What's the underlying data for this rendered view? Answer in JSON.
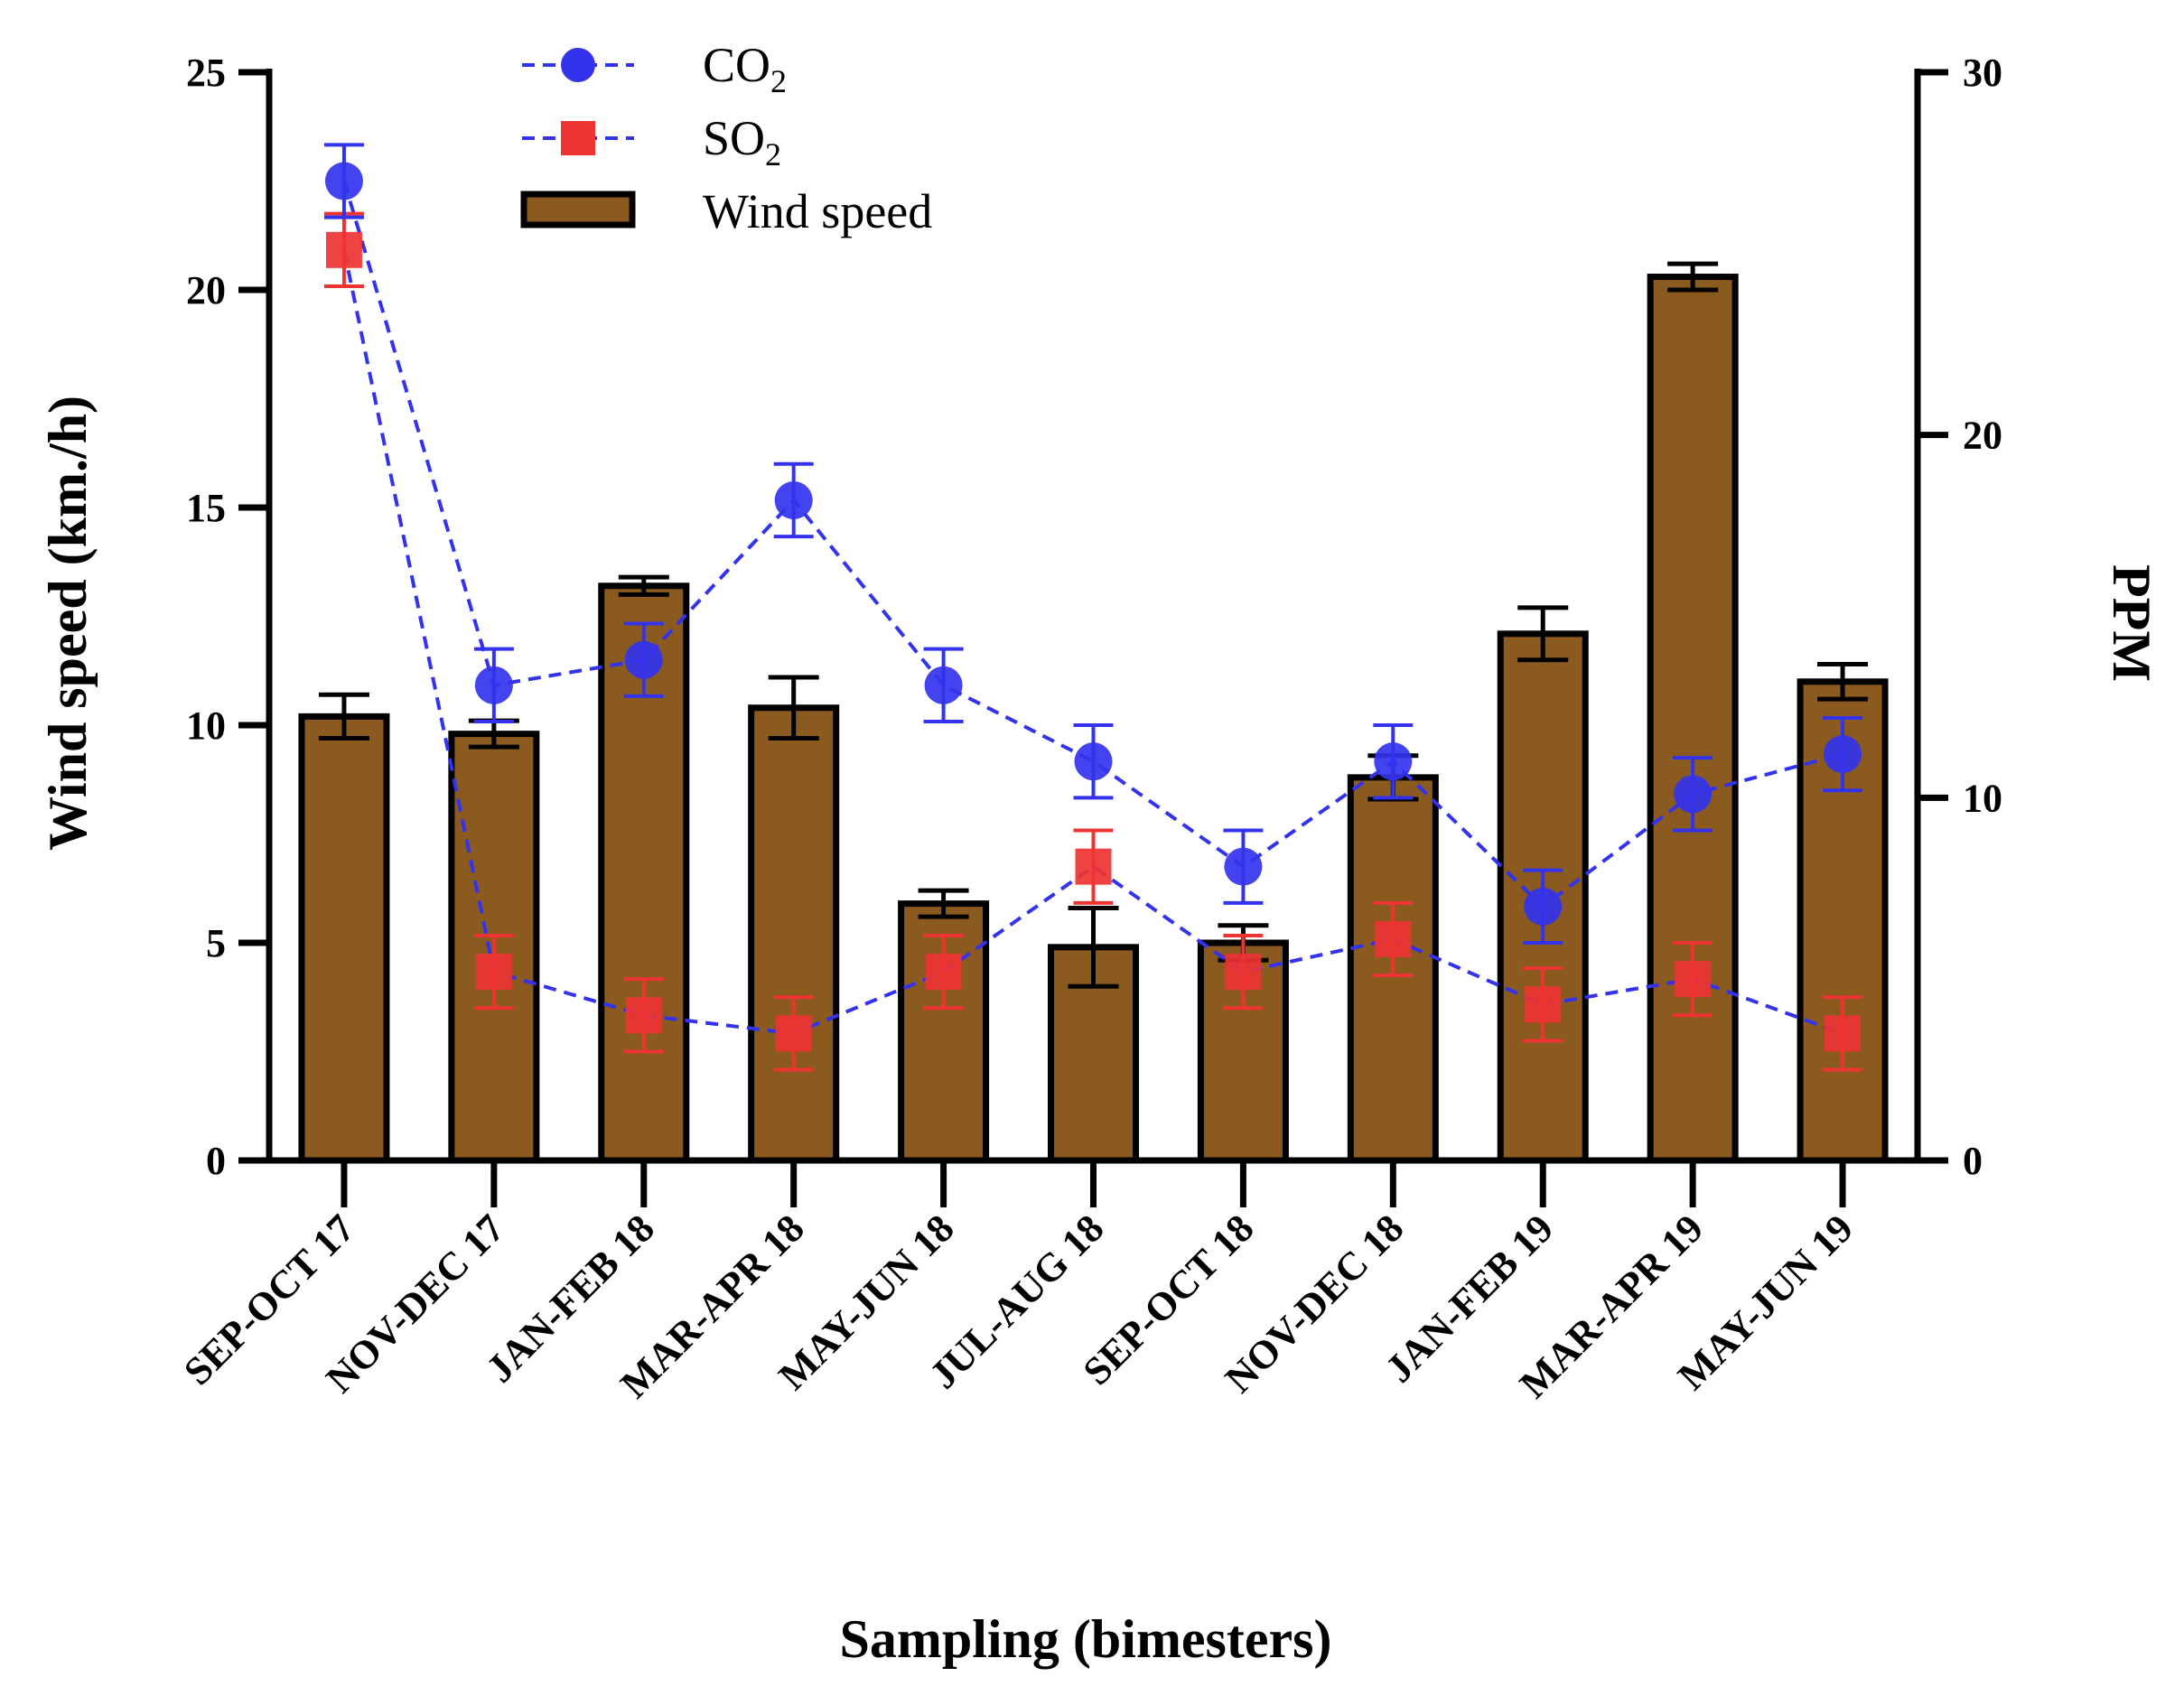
{
  "chart_data": {
    "type": "bar",
    "xlabel": "Sampling (bimesters)",
    "ylabel_left": "Wind speed (km./h)",
    "ylabel_right": "PPM",
    "ylim_left": [
      0,
      25
    ],
    "ylim_right": [
      0,
      30
    ],
    "yticks_left": [
      "0",
      "5",
      "10",
      "15",
      "20",
      "25"
    ],
    "yticks_right": [
      "0",
      "10",
      "20",
      "30"
    ],
    "categories": [
      "SEP-OCT 17",
      "NOV-DEC 17",
      "JAN-FEB 18",
      "MAR-APR 18",
      "MAY-JUN 18",
      "JUL-AUG 18",
      "SEP-OCT 18",
      "NOV-DEC 18",
      "JAN-FEB 19",
      "MAR-APR 19",
      "MAY-JUN 19"
    ],
    "legend": {
      "placement": "top-left",
      "co2_main": "CO",
      "co2_sub": "2",
      "so2_main": "SO",
      "so2_sub": "2",
      "wind_label": "Wind speed"
    },
    "series": [
      {
        "name": "Wind speed",
        "kind": "bar",
        "axis": "left",
        "color": "#8B5A1E",
        "values": [
          10.2,
          9.8,
          13.2,
          10.4,
          5.9,
          4.9,
          5.0,
          8.8,
          12.1,
          20.3,
          11.0
        ],
        "errors": [
          0.5,
          0.3,
          0.2,
          0.7,
          0.3,
          0.9,
          0.4,
          0.5,
          0.6,
          0.3,
          0.4
        ]
      },
      {
        "name": "CO2",
        "kind": "line",
        "axis": "right",
        "color": "#3333EE",
        "values": [
          27.0,
          13.1,
          13.8,
          18.2,
          13.1,
          11.0,
          8.1,
          11.0,
          7.0,
          10.1,
          11.2
        ],
        "errors": [
          1.0,
          1.0,
          1.0,
          1.0,
          1.0,
          1.0,
          1.0,
          1.0,
          1.0,
          1.0,
          1.0
        ]
      },
      {
        "name": "SO2",
        "kind": "line",
        "axis": "right",
        "color": "#EE3333",
        "values": [
          25.1,
          5.2,
          4.0,
          3.5,
          5.2,
          8.1,
          5.2,
          6.1,
          4.3,
          5.0,
          3.5
        ],
        "errors": [
          1.0,
          1.0,
          1.0,
          1.0,
          1.0,
          1.0,
          1.0,
          1.0,
          1.0,
          1.0,
          1.0
        ]
      }
    ]
  }
}
